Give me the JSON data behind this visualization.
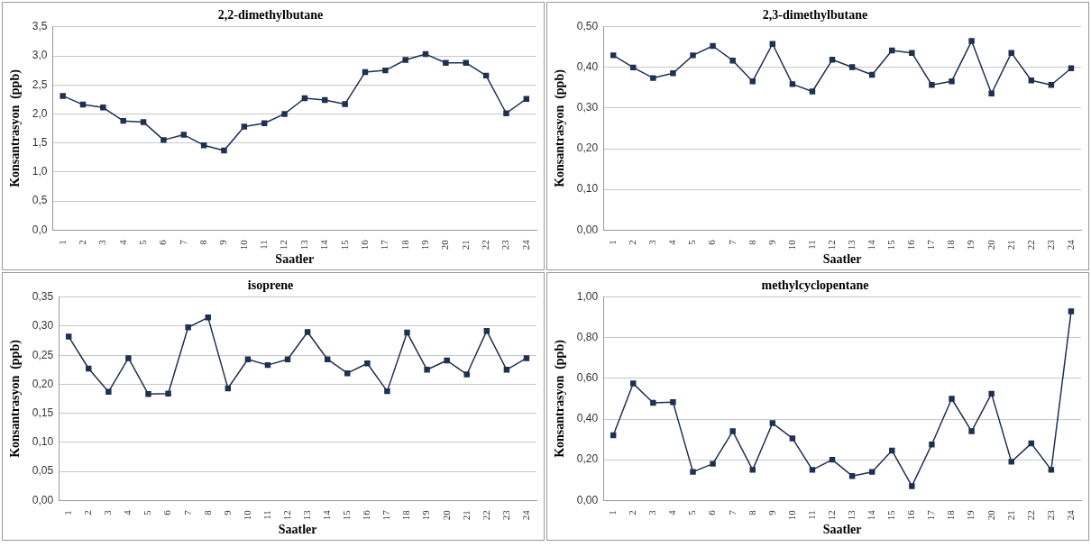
{
  "chart_data": [
    {
      "type": "line",
      "title": "2,2-dimethylbutane",
      "xlabel": "Saatler",
      "ylabel": "Konsantrasyon  (ppb)",
      "categories": [
        "1",
        "2",
        "3",
        "4",
        "5",
        "6",
        "7",
        "8",
        "9",
        "10",
        "11",
        "12",
        "13",
        "14",
        "15",
        "16",
        "17",
        "18",
        "19",
        "20",
        "21",
        "22",
        "23",
        "24"
      ],
      "series": [
        {
          "color": "#1f3050",
          "values": [
            2.31,
            2.16,
            2.11,
            1.88,
            1.86,
            1.55,
            1.64,
            1.46,
            1.37,
            1.78,
            1.84,
            2.0,
            2.27,
            2.24,
            2.17,
            2.72,
            2.75,
            2.93,
            3.03,
            2.88,
            2.88,
            2.66,
            2.01,
            2.26
          ]
        }
      ],
      "ylim": [
        0,
        3.5
      ],
      "yticks": [
        {
          "value": 0,
          "label": "0,0"
        },
        {
          "value": 0.5,
          "label": "0,5"
        },
        {
          "value": 1,
          "label": "1,0"
        },
        {
          "value": 1.5,
          "label": "1,5"
        },
        {
          "value": 2,
          "label": "2,0"
        },
        {
          "value": 2.5,
          "label": "2,5"
        },
        {
          "value": 3,
          "label": "3,0"
        },
        {
          "value": 3.5,
          "label": "3,5"
        }
      ],
      "grid": "y",
      "legend": false,
      "marker": "square",
      "line_style": "solid"
    },
    {
      "type": "line",
      "title": "2,3-dimethylbutane",
      "xlabel": "Saatler",
      "ylabel": "Konsantrasyon  (ppb)",
      "categories": [
        "1",
        "2",
        "3",
        "4",
        "5",
        "6",
        "7",
        "8",
        "9",
        "10",
        "11",
        "12",
        "13",
        "14",
        "15",
        "16",
        "17",
        "18",
        "19",
        "20",
        "21",
        "22",
        "23",
        "24"
      ],
      "series": [
        {
          "color": "#1f3050",
          "values": [
            0.43,
            0.4,
            0.374,
            0.386,
            0.43,
            0.453,
            0.417,
            0.366,
            0.458,
            0.359,
            0.341,
            0.419,
            0.401,
            0.382,
            0.442,
            0.436,
            0.357,
            0.366,
            0.465,
            0.336,
            0.436,
            0.368,
            0.357,
            0.398
          ]
        }
      ],
      "ylim": [
        0,
        0.5
      ],
      "yticks": [
        {
          "value": 0,
          "label": "0,00"
        },
        {
          "value": 0.1,
          "label": "0,10"
        },
        {
          "value": 0.2,
          "label": "0,20"
        },
        {
          "value": 0.3,
          "label": "0,30"
        },
        {
          "value": 0.4,
          "label": "0,40"
        },
        {
          "value": 0.5,
          "label": "0,50"
        }
      ],
      "grid": "y",
      "legend": false,
      "marker": "square",
      "line_style": "solid"
    },
    {
      "type": "line",
      "title": "isoprene",
      "xlabel": "Saatler",
      "ylabel": "Konsantrasyon  (ppb)",
      "categories": [
        "1",
        "2",
        "3",
        "4",
        "5",
        "6",
        "7",
        "8",
        "9",
        "10",
        "11",
        "12",
        "13",
        "14",
        "15",
        "16",
        "17",
        "18",
        "19",
        "20",
        "21",
        "22",
        "23",
        "24"
      ],
      "series": [
        {
          "color": "#1f3050",
          "values": [
            0.282,
            0.227,
            0.187,
            0.245,
            0.183,
            0.184,
            0.298,
            0.315,
            0.193,
            0.243,
            0.233,
            0.243,
            0.29,
            0.243,
            0.219,
            0.236,
            0.188,
            0.289,
            0.225,
            0.241,
            0.217,
            0.292,
            0.225,
            0.245
          ]
        }
      ],
      "ylim": [
        0,
        0.35
      ],
      "yticks": [
        {
          "value": 0,
          "label": "0,00"
        },
        {
          "value": 0.05,
          "label": "0,05"
        },
        {
          "value": 0.1,
          "label": "0,10"
        },
        {
          "value": 0.15,
          "label": "0,15"
        },
        {
          "value": 0.2,
          "label": "0,20"
        },
        {
          "value": 0.25,
          "label": "0,25"
        },
        {
          "value": 0.3,
          "label": "0,30"
        },
        {
          "value": 0.35,
          "label": "0,35"
        }
      ],
      "grid": "y",
      "legend": false,
      "marker": "square",
      "line_style": "solid"
    },
    {
      "type": "line",
      "title": "methylcyclopentane",
      "xlabel": "Saatler",
      "ylabel": "Konsantrasyon  (ppb)",
      "categories": [
        "1",
        "2",
        "3",
        "4",
        "5",
        "6",
        "7",
        "8",
        "9",
        "10",
        "11",
        "12",
        "13",
        "14",
        "15",
        "16",
        "17",
        "18",
        "19",
        "20",
        "21",
        "22",
        "23",
        "24"
      ],
      "series": [
        {
          "color": "#1f3050",
          "values": [
            0.32,
            0.575,
            0.48,
            0.483,
            0.14,
            0.18,
            0.34,
            0.15,
            0.38,
            0.305,
            0.15,
            0.2,
            0.12,
            0.14,
            0.245,
            0.07,
            0.275,
            0.5,
            0.34,
            0.525,
            0.19,
            0.28,
            0.15,
            0.93
          ]
        }
      ],
      "ylim": [
        0,
        1
      ],
      "yticks": [
        {
          "value": 0,
          "label": "0,00"
        },
        {
          "value": 0.2,
          "label": "0,20"
        },
        {
          "value": 0.4,
          "label": "0,40"
        },
        {
          "value": 0.6,
          "label": "0,60"
        },
        {
          "value": 0.8,
          "label": "0,80"
        },
        {
          "value": 1,
          "label": "1,00"
        }
      ],
      "grid": "y",
      "legend": false,
      "marker": "square",
      "line_style": "solid"
    }
  ]
}
